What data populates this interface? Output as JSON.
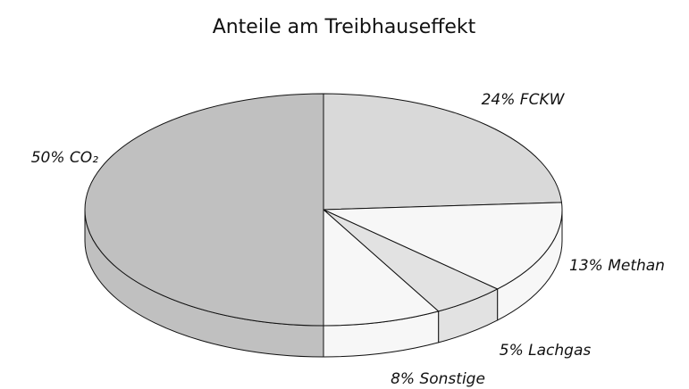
{
  "chart_data": {
    "type": "pie",
    "title": "Anteile am Treibhauseffekt",
    "categories": [
      "FCKW",
      "Methan",
      "Lachgas",
      "Sonstige",
      "CO₂"
    ],
    "values": [
      24,
      13,
      5,
      8,
      50
    ],
    "value_labels": [
      "24%",
      "13%",
      "5%",
      "8%",
      "50%"
    ],
    "colors": [
      "#d9d9d9",
      "#f7f7f7",
      "#e2e2e2",
      "#f7f7f7",
      "#c0c0c0"
    ]
  }
}
